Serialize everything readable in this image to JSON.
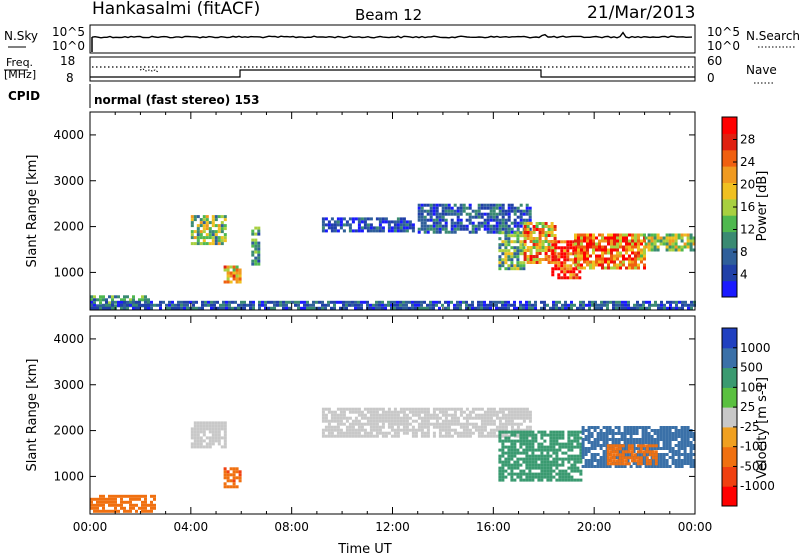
{
  "header": {
    "station": "Hankasalmi (fitACF)",
    "beam": "Beam 12",
    "date": "21/Mar/2013"
  },
  "noise_panel": {
    "left_label": "N.Sky",
    "right_label": "N.Search",
    "left_ticks": [
      "10^5",
      "10^0"
    ],
    "right_ticks": [
      "10^5",
      "10^0"
    ]
  },
  "freq_panel": {
    "left_label_1": "Freq.",
    "left_label_2": "[MHz]",
    "right_label": "Nave",
    "left_ticks": [
      "18",
      "8"
    ],
    "right_ticks": [
      "60",
      "0"
    ],
    "cpid_label": "CPID",
    "cpid_value": "normal (fast stereo) 153"
  },
  "chart_data": [
    {
      "type": "heatmap",
      "title": "",
      "quantity": "Power",
      "ylabel": "Slant Range [km]",
      "ylim": [
        180,
        4500
      ],
      "yticks": [
        "1000",
        "2000",
        "3000",
        "4000"
      ],
      "xlim": [
        "00:00",
        "24:00"
      ],
      "colorbar": {
        "label": "Power [dB]",
        "ticks": [
          "4",
          "8",
          "12",
          "16",
          "20",
          "24",
          "28"
        ],
        "colors": [
          "#1a1aff",
          "#2040a8",
          "#2f5f9a",
          "#3a8a72",
          "#4fb84f",
          "#a8d040",
          "#f0c020",
          "#f09a20",
          "#f06010",
          "#e02010",
          "#ff0000"
        ]
      },
      "regions": [
        {
          "t0": 0.0,
          "t1": 2.3,
          "r0": 250,
          "r1": 500,
          "value": 10
        },
        {
          "t0": 4.0,
          "t1": 5.4,
          "r0": 1650,
          "r1": 2250,
          "value": 14
        },
        {
          "t0": 5.3,
          "t1": 5.9,
          "r0": 820,
          "r1": 1150,
          "value": 18
        },
        {
          "t0": 6.4,
          "t1": 6.7,
          "r0": 1150,
          "r1": 2000,
          "value": 10
        },
        {
          "t0": 9.2,
          "t1": 12.8,
          "r0": 1900,
          "r1": 2200,
          "value": 5
        },
        {
          "t0": 13.0,
          "t1": 17.5,
          "r0": 1900,
          "r1": 2500,
          "value": 6
        },
        {
          "t0": 16.2,
          "t1": 17.2,
          "r0": 1050,
          "r1": 1900,
          "value": 12
        },
        {
          "t0": 17.2,
          "t1": 18.5,
          "r0": 1200,
          "r1": 2100,
          "value": 20
        },
        {
          "t0": 18.3,
          "t1": 19.4,
          "r0": 900,
          "r1": 1700,
          "value": 28
        },
        {
          "t0": 19.2,
          "t1": 22.0,
          "r0": 1100,
          "r1": 1850,
          "value": 22
        },
        {
          "t0": 22.0,
          "t1": 24.0,
          "r0": 1500,
          "r1": 1850,
          "value": 15
        },
        {
          "t0": 0.0,
          "t1": 24.0,
          "r0": 190,
          "r1": 380,
          "value": 6
        }
      ]
    },
    {
      "type": "heatmap",
      "title": "",
      "quantity": "Velocity",
      "ylabel": "Slant Range [km]",
      "ylim": [
        180,
        4500
      ],
      "yticks": [
        "1000",
        "2000",
        "3000",
        "4000"
      ],
      "xlabel": "Time UT",
      "xticks": [
        "00:00",
        "04:00",
        "08:00",
        "12:00",
        "16:00",
        "20:00",
        "00:00"
      ],
      "colorbar": {
        "label": "Velocity [m s-1]",
        "ticks": [
          "1000",
          "500",
          "100",
          "25",
          "-25",
          "-100",
          "-500",
          "-1000"
        ],
        "colors": [
          "#2040c0",
          "#3a70a8",
          "#3a9a70",
          "#5ac040",
          "#c8c8c8",
          "#f0a020",
          "#f07010",
          "#f04010",
          "#ff0000"
        ]
      },
      "regions": [
        {
          "t0": 0.0,
          "t1": 2.5,
          "r0": 250,
          "r1": 600,
          "value": -200
        },
        {
          "t0": 4.0,
          "t1": 5.4,
          "r0": 1650,
          "r1": 2200,
          "value": 0
        },
        {
          "t0": 5.3,
          "t1": 5.9,
          "r0": 800,
          "r1": 1200,
          "value": -250
        },
        {
          "t0": 9.2,
          "t1": 17.5,
          "r0": 1900,
          "r1": 2500,
          "value": 0
        },
        {
          "t0": 16.2,
          "t1": 19.5,
          "r0": 900,
          "r1": 2000,
          "value": 60
        },
        {
          "t0": 19.5,
          "t1": 24.0,
          "r0": 1200,
          "r1": 2100,
          "value": 150
        },
        {
          "t0": 20.5,
          "t1": 22.5,
          "r0": 1300,
          "r1": 1700,
          "value": -150
        }
      ]
    }
  ]
}
